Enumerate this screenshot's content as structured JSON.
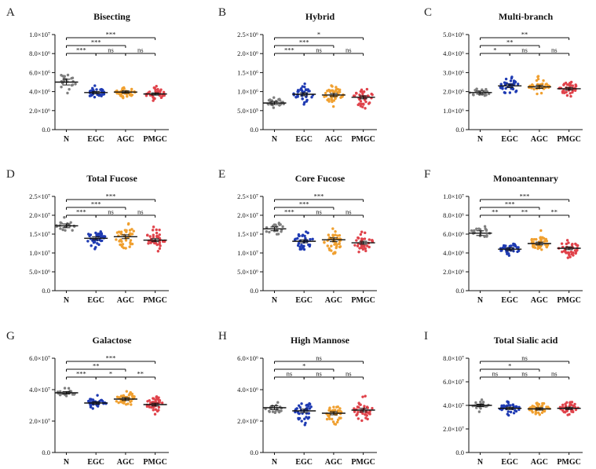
{
  "chart_data": [
    {
      "letter": "A",
      "type": "scatter",
      "title": "Bisecting",
      "categories": [
        "N",
        "EGC",
        "AGC",
        "PMGC"
      ],
      "ylim": [
        0,
        10000000
      ],
      "ytick_labels": [
        "0.0",
        "2.0×10⁶",
        "4.0×10⁶",
        "6.0×10⁶",
        "8.0×10⁶",
        "1.0×10⁷"
      ],
      "series": [
        {
          "name": "N",
          "median": 5000000,
          "sem": 300000,
          "spread": 900000,
          "n": 20,
          "color": "#7f7f7f"
        },
        {
          "name": "EGC",
          "median": 3900000,
          "sem": 120000,
          "spread": 500000,
          "n": 35,
          "color": "#1f3bb3"
        },
        {
          "name": "AGC",
          "median": 3950000,
          "sem": 120000,
          "spread": 550000,
          "n": 40,
          "color": "#f0a030"
        },
        {
          "name": "PMGC",
          "median": 3750000,
          "sem": 120000,
          "spread": 600000,
          "n": 38,
          "color": "#e0434b"
        }
      ],
      "comparisons": [
        {
          "from": "N",
          "to": "PMGC",
          "label": "***",
          "level": 1
        },
        {
          "from": "N",
          "to": "AGC",
          "label": "***",
          "level": 2
        },
        {
          "from": "N",
          "to": "EGC",
          "label": "***",
          "level": 3
        },
        {
          "from": "EGC",
          "to": "AGC",
          "label": "ns",
          "level": 3
        },
        {
          "from": "AGC",
          "to": "PMGC",
          "label": "ns",
          "level": 3
        }
      ]
    },
    {
      "letter": "B",
      "type": "scatter",
      "title": "Hybrid",
      "categories": [
        "N",
        "EGC",
        "AGC",
        "PMGC"
      ],
      "ylim": [
        0,
        2500000
      ],
      "ytick_labels": [
        "0.0",
        "5.0×10⁵",
        "1.0×10⁶",
        "1.5×10⁶",
        "2.0×10⁶",
        "2.5×10⁶"
      ],
      "series": [
        {
          "name": "N",
          "median": 700000,
          "sem": 40000,
          "spread": 120000,
          "n": 20,
          "color": "#7f7f7f"
        },
        {
          "name": "EGC",
          "median": 930000,
          "sem": 40000,
          "spread": 200000,
          "n": 35,
          "color": "#1f3bb3"
        },
        {
          "name": "AGC",
          "median": 910000,
          "sem": 40000,
          "spread": 230000,
          "n": 40,
          "color": "#f0a030"
        },
        {
          "name": "PMGC",
          "median": 850000,
          "sem": 40000,
          "spread": 250000,
          "n": 38,
          "color": "#e0434b"
        }
      ],
      "comparisons": [
        {
          "from": "N",
          "to": "PMGC",
          "label": "*",
          "level": 1
        },
        {
          "from": "N",
          "to": "AGC",
          "label": "***",
          "level": 2
        },
        {
          "from": "N",
          "to": "EGC",
          "label": "***",
          "level": 3
        },
        {
          "from": "EGC",
          "to": "AGC",
          "label": "ns",
          "level": 3
        },
        {
          "from": "AGC",
          "to": "PMGC",
          "label": "ns",
          "level": 3
        }
      ]
    },
    {
      "letter": "C",
      "type": "scatter",
      "title": "Multi-branch",
      "categories": [
        "N",
        "EGC",
        "AGC",
        "PMGC"
      ],
      "ylim": [
        0,
        5000000
      ],
      "ytick_labels": [
        "0.0",
        "1.0×10⁶",
        "2.0×10⁶",
        "3.0×10⁶",
        "4.0×10⁶",
        "5.0×10⁶"
      ],
      "series": [
        {
          "name": "N",
          "median": 1950000,
          "sem": 80000,
          "spread": 250000,
          "n": 20,
          "color": "#7f7f7f"
        },
        {
          "name": "EGC",
          "median": 2300000,
          "sem": 90000,
          "spread": 450000,
          "n": 35,
          "color": "#1f3bb3"
        },
        {
          "name": "AGC",
          "median": 2250000,
          "sem": 80000,
          "spread": 350000,
          "n": 40,
          "color": "#f0a030"
        },
        {
          "name": "PMGC",
          "median": 2150000,
          "sem": 70000,
          "spread": 350000,
          "n": 38,
          "color": "#e0434b"
        }
      ],
      "comparisons": [
        {
          "from": "N",
          "to": "PMGC",
          "label": "**",
          "level": 1
        },
        {
          "from": "N",
          "to": "AGC",
          "label": "**",
          "level": 2
        },
        {
          "from": "N",
          "to": "EGC",
          "label": "*",
          "level": 3
        },
        {
          "from": "EGC",
          "to": "AGC",
          "label": "ns",
          "level": 3
        },
        {
          "from": "AGC",
          "to": "PMGC",
          "label": "ns",
          "level": 3
        }
      ]
    },
    {
      "letter": "D",
      "type": "scatter",
      "title": "Total Fucose",
      "categories": [
        "N",
        "EGC",
        "AGC",
        "PMGC"
      ],
      "ylim": [
        0,
        25000000
      ],
      "ytick_labels": [
        "0.0",
        "5.0×10⁶",
        "1.0×10⁷",
        "1.5×10⁷",
        "2.0×10⁷",
        "2.5×10⁷"
      ],
      "series": [
        {
          "name": "N",
          "median": 17200000,
          "sem": 500000,
          "spread": 1800000,
          "n": 20,
          "color": "#7f7f7f"
        },
        {
          "name": "EGC",
          "median": 13900000,
          "sem": 400000,
          "spread": 2200000,
          "n": 35,
          "color": "#1f3bb3"
        },
        {
          "name": "AGC",
          "median": 14300000,
          "sem": 500000,
          "spread": 3600000,
          "n": 40,
          "color": "#f0a030"
        },
        {
          "name": "PMGC",
          "median": 13400000,
          "sem": 400000,
          "spread": 2800000,
          "n": 38,
          "color": "#e0434b"
        }
      ],
      "comparisons": [
        {
          "from": "N",
          "to": "PMGC",
          "label": "***",
          "level": 1
        },
        {
          "from": "N",
          "to": "AGC",
          "label": "***",
          "level": 2
        },
        {
          "from": "N",
          "to": "EGC",
          "label": "***",
          "level": 3
        },
        {
          "from": "EGC",
          "to": "AGC",
          "label": "ns",
          "level": 3
        },
        {
          "from": "AGC",
          "to": "PMGC",
          "label": "ns",
          "level": 3
        }
      ]
    },
    {
      "letter": "E",
      "type": "scatter",
      "title": "Core Fucose",
      "categories": [
        "N",
        "EGC",
        "AGC",
        "PMGC"
      ],
      "ylim": [
        0,
        25000000
      ],
      "ytick_labels": [
        "0.0",
        "5.0×10⁶",
        "1.0×10⁷",
        "1.5×10⁷",
        "2.0×10⁷",
        "2.5×10⁷"
      ],
      "series": [
        {
          "name": "N",
          "median": 16400000,
          "sem": 500000,
          "spread": 1800000,
          "n": 20,
          "color": "#7f7f7f"
        },
        {
          "name": "EGC",
          "median": 13100000,
          "sem": 400000,
          "spread": 2200000,
          "n": 35,
          "color": "#1f3bb3"
        },
        {
          "name": "AGC",
          "median": 13500000,
          "sem": 500000,
          "spread": 3300000,
          "n": 40,
          "color": "#f0a030"
        },
        {
          "name": "PMGC",
          "median": 12700000,
          "sem": 400000,
          "spread": 2700000,
          "n": 38,
          "color": "#e0434b"
        }
      ],
      "comparisons": [
        {
          "from": "N",
          "to": "PMGC",
          "label": "***",
          "level": 1
        },
        {
          "from": "N",
          "to": "AGC",
          "label": "***",
          "level": 2
        },
        {
          "from": "N",
          "to": "EGC",
          "label": "***",
          "level": 3
        },
        {
          "from": "EGC",
          "to": "AGC",
          "label": "ns",
          "level": 3
        },
        {
          "from": "AGC",
          "to": "PMGC",
          "label": "ns",
          "level": 3
        }
      ]
    },
    {
      "letter": "F",
      "type": "scatter",
      "title": "Monoantennary",
      "categories": [
        "N",
        "EGC",
        "AGC",
        "PMGC"
      ],
      "ylim": [
        0,
        10000000
      ],
      "ytick_labels": [
        "0.0",
        "2.0×10⁶",
        "4.0×10⁶",
        "6.0×10⁶",
        "8.0×10⁶",
        "1.0×10⁷"
      ],
      "series": [
        {
          "name": "N",
          "median": 6100000,
          "sem": 250000,
          "spread": 900000,
          "n": 20,
          "color": "#7f7f7f"
        },
        {
          "name": "EGC",
          "median": 4400000,
          "sem": 150000,
          "spread": 600000,
          "n": 35,
          "color": "#1f3bb3"
        },
        {
          "name": "AGC",
          "median": 5000000,
          "sem": 150000,
          "spread": 900000,
          "n": 40,
          "color": "#f0a030"
        },
        {
          "name": "PMGC",
          "median": 4500000,
          "sem": 150000,
          "spread": 900000,
          "n": 38,
          "color": "#e0434b"
        }
      ],
      "comparisons": [
        {
          "from": "N",
          "to": "PMGC",
          "label": "***",
          "level": 1
        },
        {
          "from": "N",
          "to": "AGC",
          "label": "***",
          "level": 2
        },
        {
          "from": "N",
          "to": "EGC",
          "label": "**",
          "level": 3
        },
        {
          "from": "EGC",
          "to": "AGC",
          "label": "**",
          "level": 3
        },
        {
          "from": "AGC",
          "to": "PMGC",
          "label": "**",
          "level": 3
        }
      ]
    },
    {
      "letter": "G",
      "type": "scatter",
      "title": "Galactose",
      "categories": [
        "N",
        "EGC",
        "AGC",
        "PMGC"
      ],
      "ylim": [
        0,
        60000000
      ],
      "ytick_labels": [
        "0.0",
        "2.0×10⁷",
        "4.0×10⁷",
        "6.0×10⁷"
      ],
      "series": [
        {
          "name": "N",
          "median": 38000000,
          "sem": 800000,
          "spread": 2500000,
          "n": 20,
          "color": "#7f7f7f"
        },
        {
          "name": "EGC",
          "median": 31500000,
          "sem": 800000,
          "spread": 3500000,
          "n": 35,
          "color": "#1f3bb3"
        },
        {
          "name": "AGC",
          "median": 34000000,
          "sem": 900000,
          "spread": 5500000,
          "n": 40,
          "color": "#f0a030"
        },
        {
          "name": "PMGC",
          "median": 30500000,
          "sem": 900000,
          "spread": 5000000,
          "n": 38,
          "color": "#e0434b"
        }
      ],
      "comparisons": [
        {
          "from": "N",
          "to": "PMGC",
          "label": "***",
          "level": 1
        },
        {
          "from": "N",
          "to": "AGC",
          "label": "**",
          "level": 2
        },
        {
          "from": "N",
          "to": "EGC",
          "label": "***",
          "level": 3
        },
        {
          "from": "EGC",
          "to": "AGC",
          "label": "*",
          "level": 3
        },
        {
          "from": "AGC",
          "to": "PMGC",
          "label": "**",
          "level": 3
        }
      ]
    },
    {
      "letter": "H",
      "type": "scatter",
      "title": "High Mannose",
      "categories": [
        "N",
        "EGC",
        "AGC",
        "PMGC"
      ],
      "ylim": [
        0,
        6000000
      ],
      "ytick_labels": [
        "0.0",
        "2.0×10⁶",
        "4.0×10⁶",
        "6.0×10⁶"
      ],
      "series": [
        {
          "name": "N",
          "median": 2850000,
          "sem": 120000,
          "spread": 350000,
          "n": 20,
          "color": "#7f7f7f"
        },
        {
          "name": "EGC",
          "median": 2650000,
          "sem": 110000,
          "spread": 650000,
          "n": 35,
          "color": "#1f3bb3"
        },
        {
          "name": "AGC",
          "median": 2500000,
          "sem": 100000,
          "spread": 600000,
          "n": 40,
          "color": "#f0a030"
        },
        {
          "name": "PMGC",
          "median": 2700000,
          "sem": 110000,
          "spread": 700000,
          "n": 38,
          "color": "#e0434b"
        }
      ],
      "comparisons": [
        {
          "from": "N",
          "to": "PMGC",
          "label": "ns",
          "level": 1
        },
        {
          "from": "N",
          "to": "AGC",
          "label": "*",
          "level": 2
        },
        {
          "from": "N",
          "to": "EGC",
          "label": "ns",
          "level": 3
        },
        {
          "from": "EGC",
          "to": "AGC",
          "label": "ns",
          "level": 3
        },
        {
          "from": "AGC",
          "to": "PMGC",
          "label": "ns",
          "level": 3
        }
      ]
    },
    {
      "letter": "I",
      "type": "scatter",
      "title": "Total Sialic acid",
      "categories": [
        "N",
        "EGC",
        "AGC",
        "PMGC"
      ],
      "ylim": [
        0,
        80000000
      ],
      "ytick_labels": [
        "0.0",
        "2.0×10⁷",
        "4.0×10⁷",
        "6.0×10⁷",
        "8.0×10⁷"
      ],
      "series": [
        {
          "name": "N",
          "median": 40000000,
          "sem": 1000000,
          "spread": 3500000,
          "n": 20,
          "color": "#7f7f7f"
        },
        {
          "name": "EGC",
          "median": 37500000,
          "sem": 1000000,
          "spread": 5000000,
          "n": 35,
          "color": "#1f3bb3"
        },
        {
          "name": "AGC",
          "median": 37000000,
          "sem": 1000000,
          "spread": 5000000,
          "n": 40,
          "color": "#f0a030"
        },
        {
          "name": "PMGC",
          "median": 37500000,
          "sem": 1000000,
          "spread": 5500000,
          "n": 38,
          "color": "#e0434b"
        }
      ],
      "comparisons": [
        {
          "from": "N",
          "to": "PMGC",
          "label": "ns",
          "level": 1
        },
        {
          "from": "N",
          "to": "AGC",
          "label": "*",
          "level": 2
        },
        {
          "from": "N",
          "to": "EGC",
          "label": "ns",
          "level": 3
        },
        {
          "from": "EGC",
          "to": "AGC",
          "label": "ns",
          "level": 3
        },
        {
          "from": "AGC",
          "to": "PMGC",
          "label": "ns",
          "level": 3
        }
      ]
    }
  ]
}
